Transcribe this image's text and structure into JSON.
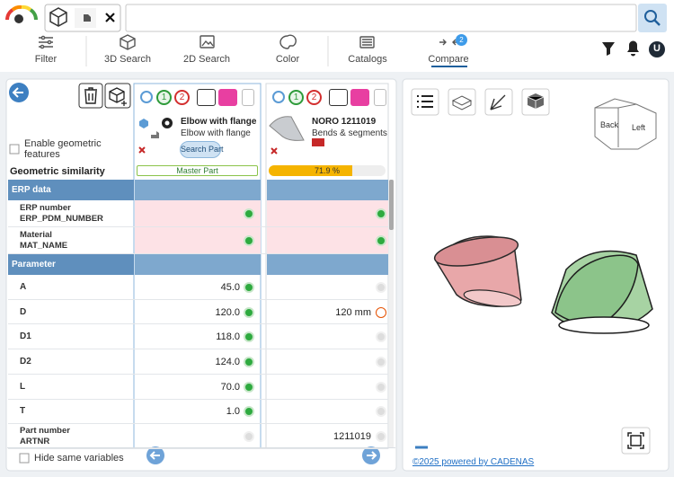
{
  "nav": [
    {
      "label": "Filter"
    },
    {
      "label": "3D Search"
    },
    {
      "label": "2D Search"
    },
    {
      "label": "Color"
    },
    {
      "label": "Catalogs"
    },
    {
      "label": "Compare",
      "badge": "2"
    }
  ],
  "user_initial": "U",
  "left": {
    "geometric_toggle": [
      "Enable geometric",
      "features"
    ],
    "similarity_label": "Geometric similarity",
    "hide_same": "Hide same variables"
  },
  "parts": [
    {
      "badges": [
        "1",
        "2"
      ],
      "name": "Elbow with flange",
      "description": "Elbow with flange",
      "button": "Search Part",
      "status": "Master Part"
    },
    {
      "badges": [
        "1",
        "2"
      ],
      "name": "NORO 1211019",
      "description": "Bends & segments",
      "similarity": 71.9,
      "similarity_label": "71.9 %"
    }
  ],
  "sections": [
    {
      "title": "ERP data",
      "rows": [
        {
          "label": "ERP number",
          "variable": "ERP_PDM_NUMBER"
        },
        {
          "label": "Material",
          "variable": "MAT_NAME"
        }
      ]
    },
    {
      "title": "Parameter",
      "rows": [
        {
          "label": "A",
          "values": [
            "45.0",
            null
          ]
        },
        {
          "label": "D",
          "values": [
            "120.0",
            "120 mm"
          ]
        },
        {
          "label": "D1",
          "values": [
            "118.0",
            null
          ]
        },
        {
          "label": "D2",
          "values": [
            "124.0",
            null
          ]
        },
        {
          "label": "L",
          "values": [
            "70.0",
            null
          ]
        },
        {
          "label": "T",
          "values": [
            "1.0",
            null
          ]
        },
        {
          "label": "Part number",
          "variable": "ARTNR",
          "values": [
            null,
            "1211019"
          ]
        }
      ]
    }
  ],
  "viewer": {
    "cube_faces": [
      "Back",
      "Left"
    ],
    "footer": "©2025 powered by CADENAS"
  }
}
